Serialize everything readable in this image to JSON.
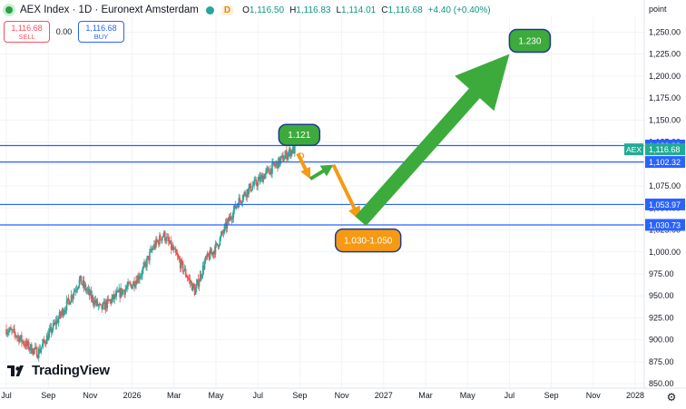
{
  "header": {
    "symbol_title": "AEX Index · 1D · Euronext Amsterdam",
    "interval_badge": "D",
    "ohlc": {
      "open_label": "O",
      "open": "1,116.50",
      "high_label": "H",
      "high": "1,116.83",
      "low_label": "L",
      "low": "1,114.01",
      "close_label": "C",
      "close": "1,116.68",
      "change": "+4.40 (+0.40%)"
    }
  },
  "trade_panel": {
    "sell_price": "1,116.68",
    "sell_label": "SELL",
    "spread": "0.00",
    "buy_price": "1,116.68",
    "buy_label": "BUY"
  },
  "brand": {
    "wordmark": "TradingView"
  },
  "icons": {
    "settings": "gear-icon",
    "logo": "tradingview-logo-icon"
  },
  "colors": {
    "up_candle": "#26a69a",
    "down_candle": "#ef5350",
    "level_line": "#2962ff",
    "arrow_green": "#3cab3c",
    "arrow_orange": "#f59a12",
    "price_tag": "#22ab94"
  },
  "chart_data": {
    "type": "candlestick",
    "symbol": "AEX",
    "y_axis_title": "point",
    "ylim": [
      845,
      1268
    ],
    "x_tick_labels": [
      "Jul",
      "Sep",
      "Nov",
      "2026",
      "Mar",
      "May",
      "Jul",
      "Sep",
      "Nov",
      "2027",
      "Mar",
      "May",
      "Jul",
      "Sep",
      "Nov",
      "2028"
    ],
    "y_tick_values": [
      850,
      875,
      900,
      925,
      950,
      975,
      1000,
      1025,
      1050,
      1075,
      1100,
      1125,
      1150,
      1175,
      1200,
      1225,
      1250
    ],
    "y_tick_labels": [
      "850.00",
      "875.00",
      "900.00",
      "925.00",
      "950.00",
      "975.00",
      "1,000.00",
      "1,025.00",
      "1,050.00",
      "1,075.00",
      "1,100.00",
      "1,125.00",
      "1,150.00",
      "1,175.00",
      "1,200.00",
      "1,225.00",
      "1,250.00"
    ],
    "price_path": [
      [
        0,
        912
      ],
      [
        0.25,
        905
      ],
      [
        0.5,
        893
      ],
      [
        0.75,
        885
      ],
      [
        1.0,
        905
      ],
      [
        1.25,
        925
      ],
      [
        1.5,
        945
      ],
      [
        1.75,
        968
      ],
      [
        2.0,
        950
      ],
      [
        2.25,
        935
      ],
      [
        2.5,
        945
      ],
      [
        2.75,
        955
      ],
      [
        3.0,
        963
      ],
      [
        3.25,
        978
      ],
      [
        3.5,
        1005
      ],
      [
        3.75,
        1020
      ],
      [
        4.0,
        1000
      ],
      [
        4.25,
        978
      ],
      [
        4.5,
        955
      ],
      [
        4.75,
        990
      ],
      [
        5.0,
        1005
      ],
      [
        5.25,
        1030
      ],
      [
        5.5,
        1055
      ],
      [
        5.75,
        1070
      ],
      [
        6.0,
        1080
      ],
      [
        6.25,
        1092
      ],
      [
        6.5,
        1102
      ],
      [
        6.75,
        1114
      ],
      [
        6.9,
        1116.68
      ]
    ],
    "last_bar": {
      "open": 1116.5,
      "high": 1116.83,
      "low": 1114.01,
      "close": 1116.68
    },
    "current_price": {
      "label": "AEX",
      "value": 1116.68,
      "text": "1,116.68"
    },
    "horizontal_levels": [
      {
        "value": 1120.99,
        "text": "1,120.99"
      },
      {
        "value": 1102.32,
        "text": "1,102.32"
      },
      {
        "value": 1053.97,
        "text": "1,053.97"
      },
      {
        "value": 1030.73,
        "text": "1,030.73"
      }
    ],
    "annotations": [
      {
        "type": "label",
        "text": "1.121",
        "color": "#3cab3c"
      },
      {
        "type": "label",
        "text": "1.030-1.050",
        "color": "#f59a12"
      },
      {
        "type": "label",
        "text": "1.230",
        "color": "#3cab3c"
      },
      {
        "type": "marker",
        "text": "D",
        "color": "#f59a12"
      }
    ],
    "projection_path": [
      {
        "x": 6.95,
        "y": 1112,
        "color": "orange"
      },
      {
        "x": 7.25,
        "y": 1083,
        "color": "green"
      },
      {
        "x": 7.8,
        "y": 1099,
        "color": "orange"
      },
      {
        "x": 8.45,
        "y": 1035,
        "color": "green"
      },
      {
        "x": 12.0,
        "y": 1225
      }
    ],
    "legend": "none",
    "grid": true
  }
}
